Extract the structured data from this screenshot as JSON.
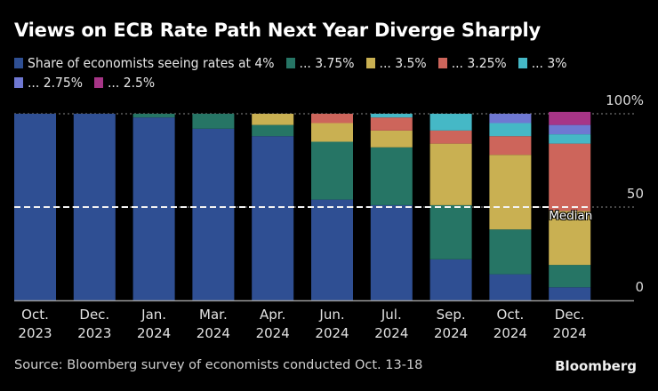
{
  "chart_data": {
    "type": "bar",
    "stacked": true,
    "title": "Views on ECB Rate Path Next Year Diverge Sharply",
    "xlabel": "",
    "ylabel": "",
    "ylim": [
      0,
      100
    ],
    "y_ticks": [
      {
        "value": 100,
        "label": "100%"
      },
      {
        "value": 50,
        "label": "50"
      },
      {
        "value": 0,
        "label": "0"
      }
    ],
    "grid": "horizontal dotted at 50 and 100",
    "legend_position": "top",
    "categories": [
      [
        "Oct.",
        "2023"
      ],
      [
        "Dec.",
        "2023"
      ],
      [
        "Jan.",
        "2024"
      ],
      [
        "Mar.",
        "2024"
      ],
      [
        "Apr.",
        "2024"
      ],
      [
        "Jun.",
        "2024"
      ],
      [
        "Jul.",
        "2024"
      ],
      [
        "Sep.",
        "2024"
      ],
      [
        "Oct.",
        "2024"
      ],
      [
        "Dec.",
        "2024"
      ]
    ],
    "series": [
      {
        "name": "Share of economists seeing rates at 4%",
        "color": "#2f4f93",
        "values": [
          100,
          100,
          98,
          92,
          88,
          54,
          51,
          22,
          14,
          7
        ]
      },
      {
        "name": "... 3.75%",
        "color": "#267565",
        "values": [
          0,
          0,
          2,
          8,
          6,
          31,
          31,
          29,
          24,
          12
        ]
      },
      {
        "name": "... 3.5%",
        "color": "#c9b052",
        "values": [
          0,
          0,
          0,
          0,
          6,
          10,
          9,
          33,
          40,
          29
        ]
      },
      {
        "name": "... 3.25%",
        "color": "#cd655b",
        "values": [
          0,
          0,
          0,
          0,
          0,
          5,
          7,
          7,
          10,
          36
        ]
      },
      {
        "name": "... 3%",
        "color": "#45b8c6",
        "values": [
          0,
          0,
          0,
          0,
          0,
          0,
          2,
          9,
          7,
          5
        ]
      },
      {
        "name": "... 2.75%",
        "color": "#6f78d2",
        "values": [
          0,
          0,
          0,
          0,
          0,
          0,
          0,
          0,
          5,
          5
        ]
      },
      {
        "name": "... 2.5%",
        "color": "#a73587",
        "values": [
          0,
          0,
          0,
          0,
          0,
          0,
          0,
          0,
          0,
          7
        ]
      }
    ],
    "annotations": [
      {
        "type": "reference-line",
        "value": 50,
        "label": "Median",
        "style": "dashed white"
      }
    ]
  },
  "footer": {
    "source": "Source: Bloomberg survey of economists conducted Oct. 13-18",
    "brand": "Bloomberg"
  }
}
